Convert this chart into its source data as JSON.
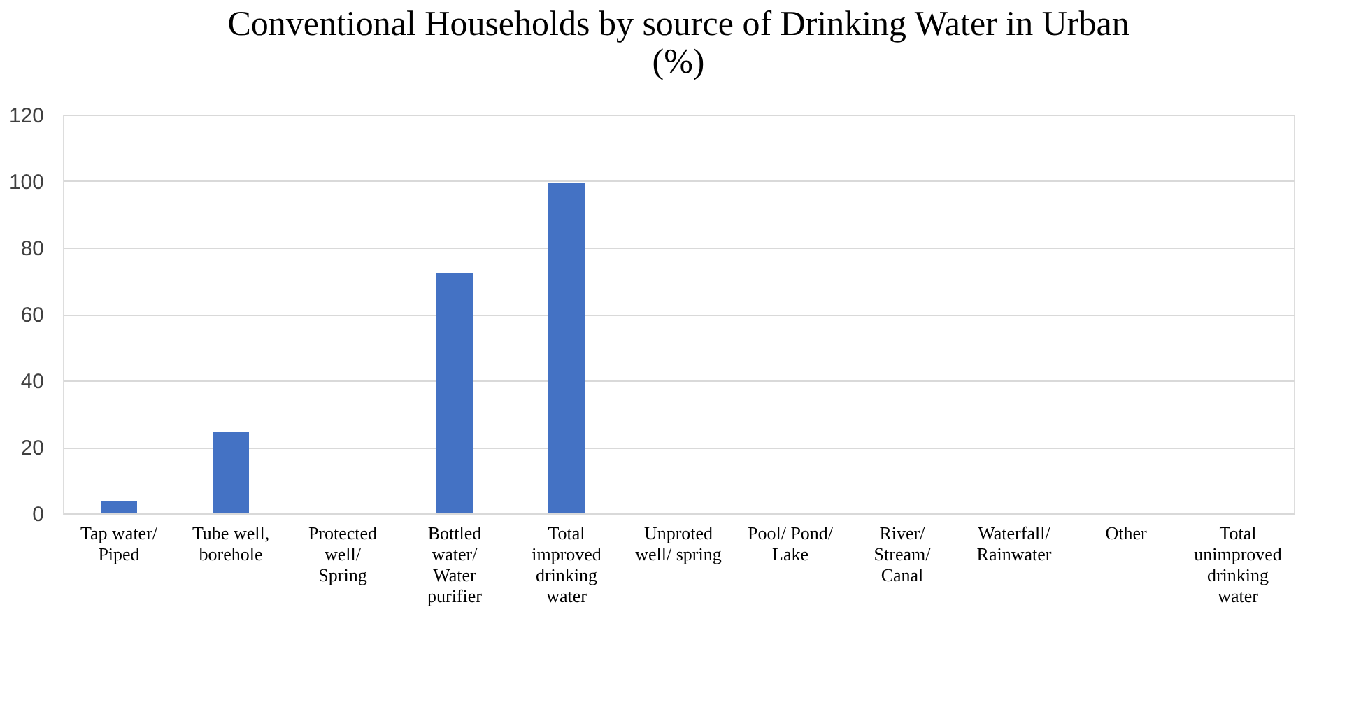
{
  "chart_data": {
    "type": "bar",
    "title": [
      "Conventional Households by source of Drinking Water in Urban",
      "(%)"
    ],
    "categories": [
      "Tap water/\nPiped",
      "Tube well,\nborehole",
      "Protected\nwell/\nSpring",
      "Bottled\nwater/\nWater\npurifier",
      "Total\nimproved\ndrinking\nwater",
      "Unproted\nwell/ spring",
      "Pool/ Pond/\nLake",
      "River/\nStream/\nCanal",
      "Waterfall/\nRainwater",
      "Other",
      "Total\nunimproved\ndrinking\nwater"
    ],
    "values": [
      3.6,
      24.5,
      0,
      72.2,
      99.6,
      0,
      0,
      0,
      0,
      0,
      0
    ],
    "color": "#4472c4",
    "ylim": [
      0,
      120
    ],
    "yticks": [
      0,
      20,
      40,
      60,
      80,
      100,
      120
    ],
    "grid": "y"
  }
}
